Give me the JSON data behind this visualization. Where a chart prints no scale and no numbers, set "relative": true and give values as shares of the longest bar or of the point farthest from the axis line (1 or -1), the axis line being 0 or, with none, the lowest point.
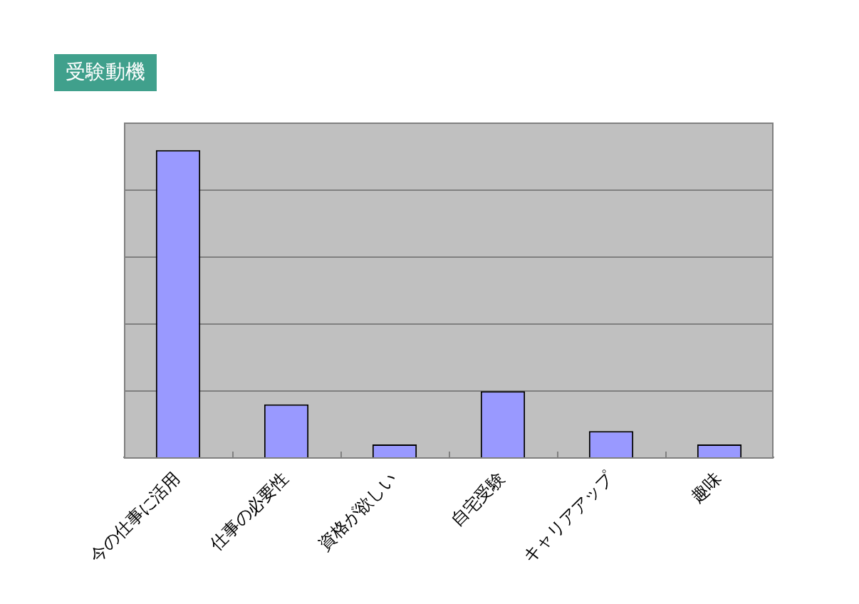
{
  "chart_data": {
    "type": "bar",
    "title": "受験動機",
    "categories": [
      "今の仕事に活用",
      "仕事の必要性",
      "資格が欲しい",
      "自宅受験",
      "キャリアアップ",
      "趣味"
    ],
    "values": [
      1,
      0.172,
      0.042,
      0.215,
      0.085,
      0.042
    ],
    "color": "#9999ff",
    "relative": true,
    "grid": "y"
  }
}
